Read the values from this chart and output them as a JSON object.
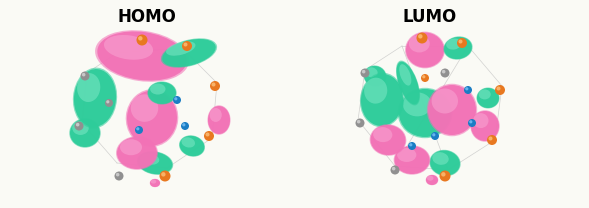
{
  "title_homo": "HOMO",
  "title_lumo": "LUMO",
  "bg_color": "#FAFAF5",
  "title_fontsize": 12,
  "title_fontweight": "bold",
  "fig_width": 5.89,
  "fig_height": 2.08,
  "dpi": 100,
  "pink": "#F272B6",
  "pink_light": "#F9A8D4",
  "pink_dark": "#C2185B",
  "green": "#2ECC9A",
  "green_light": "#80E8C8",
  "green_dark": "#0A8060",
  "orange": "#E87820",
  "blue": "#1A7DC4",
  "gray": "#909090",
  "gray_light": "#C8C8C8",
  "white": "#FFFFFF"
}
